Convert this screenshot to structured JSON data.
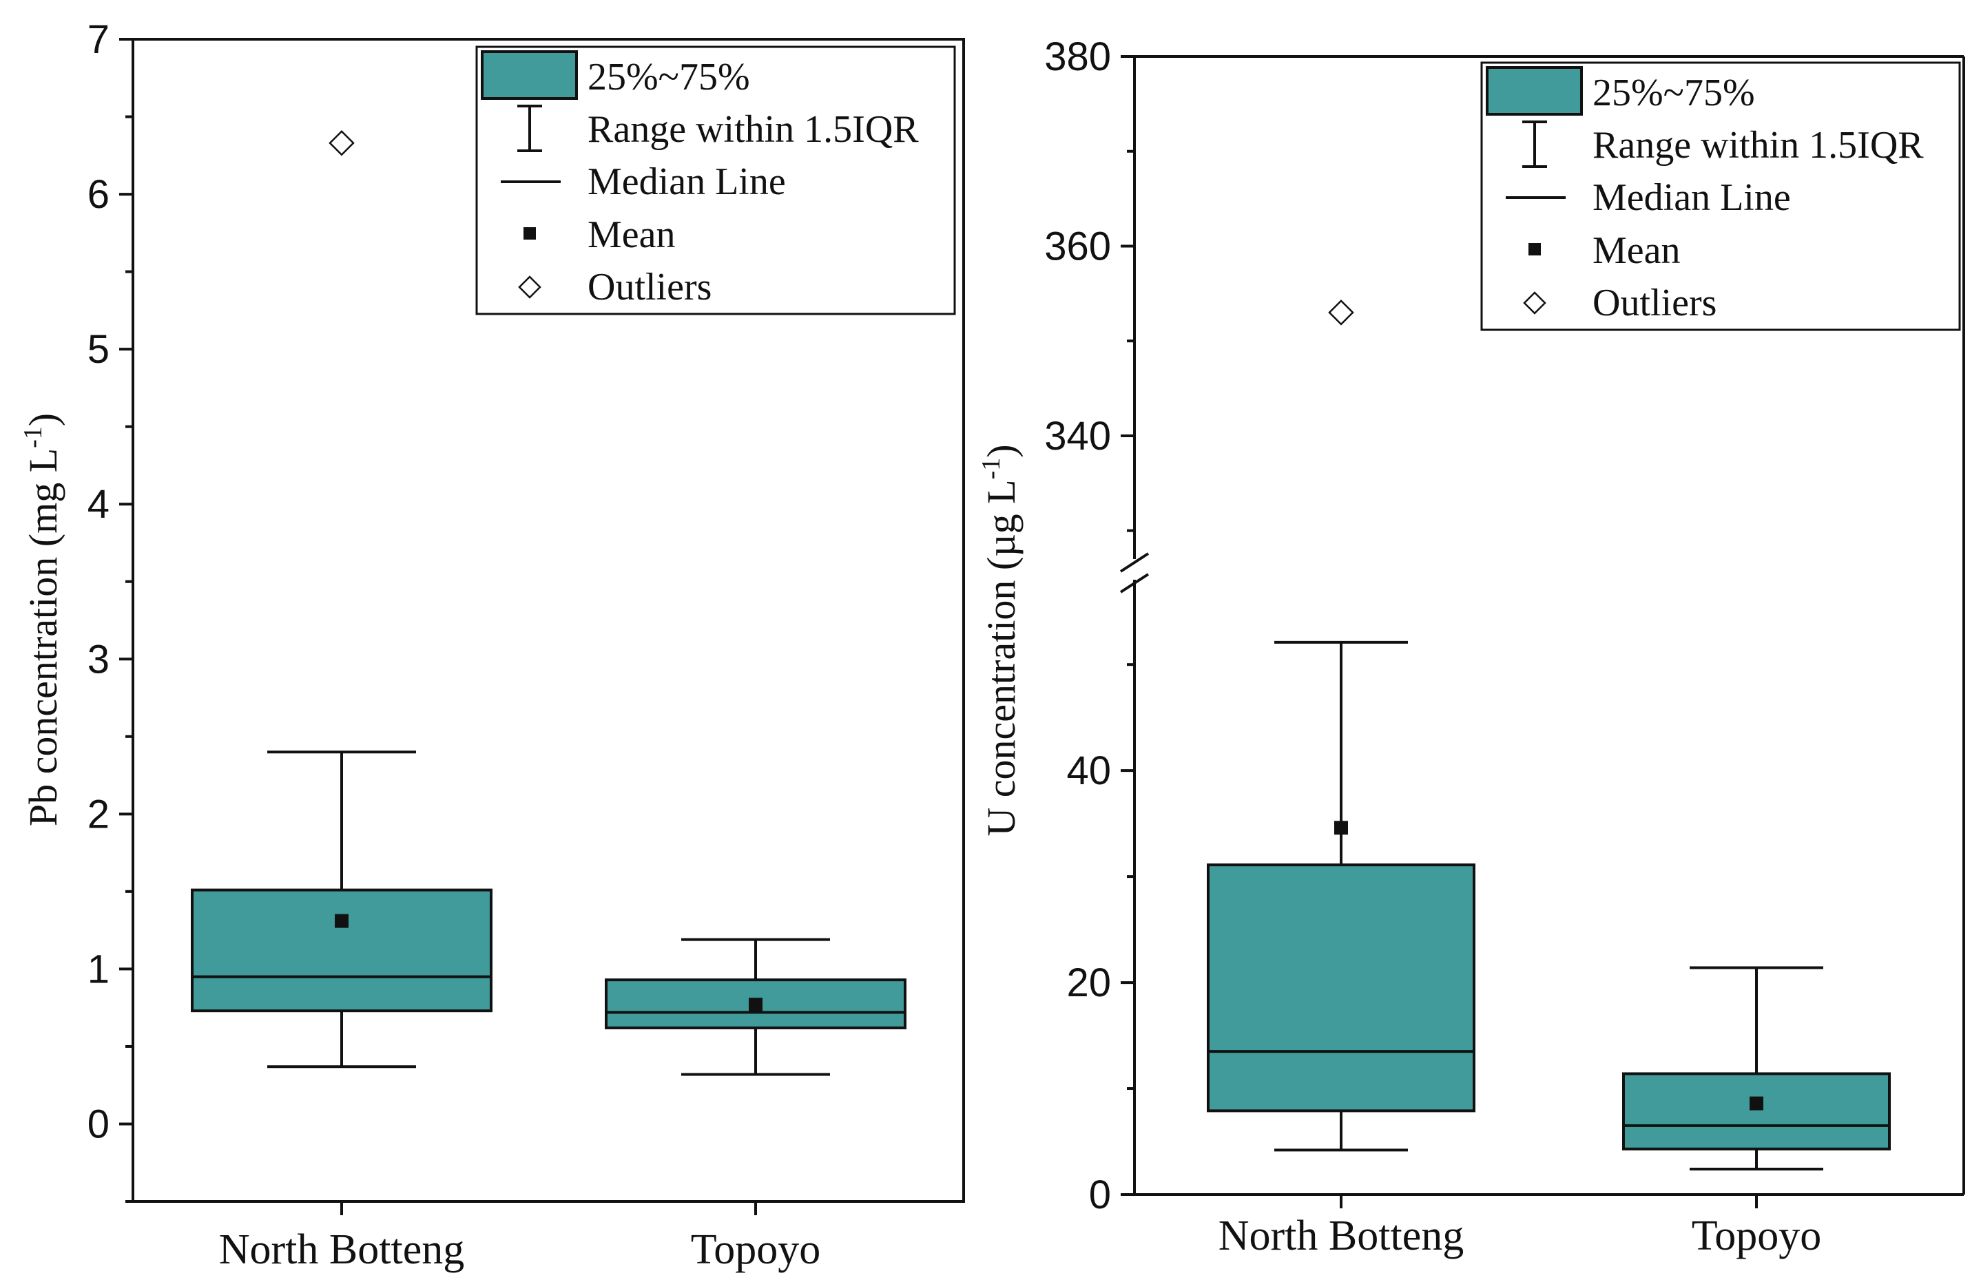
{
  "chart_data": [
    {
      "type": "box",
      "ylabel_base": "Pb concentration (mg L",
      "ylabel_sup": "-1",
      "ylabel_end": ")",
      "ylim": [
        -0.5,
        7
      ],
      "yticks": [
        0,
        1,
        2,
        3,
        4,
        5,
        6,
        7
      ],
      "ytick_labels": [
        "0",
        "1",
        "2",
        "3",
        "4",
        "5",
        "6",
        "7"
      ],
      "categories": [
        "North Botteng",
        "Topoyo"
      ],
      "boxes": [
        {
          "category": "North Botteng",
          "whisker_low": 0.37,
          "q1": 0.73,
          "median": 0.95,
          "q3": 1.51,
          "whisker_high": 2.4,
          "mean": 1.31,
          "outliers": [
            6.33
          ]
        },
        {
          "category": "Topoyo",
          "whisker_low": 0.32,
          "q1": 0.62,
          "median": 0.72,
          "q3": 0.93,
          "whisker_high": 1.19,
          "mean": 0.77,
          "outliers": []
        }
      ],
      "legend_position": "top-right",
      "axis_break": false
    },
    {
      "type": "box",
      "ylabel_base": "U concentration (µg L",
      "ylabel_sup": "-1",
      "ylabel_end": ")",
      "ylim_lower": [
        0,
        58
      ],
      "ylim_upper": [
        327,
        380
      ],
      "yticks": [
        0,
        20,
        40,
        340,
        360,
        380
      ],
      "ytick_labels": [
        "0",
        "20",
        "40",
        "340",
        "360",
        "380"
      ],
      "categories": [
        "North Botteng",
        "Topoyo"
      ],
      "boxes": [
        {
          "category": "North Botteng",
          "whisker_low": 4.2,
          "q1": 7.9,
          "median": 13.5,
          "q3": 31.1,
          "whisker_high": 52.1,
          "mean": 34.6,
          "outliers": [
            353
          ]
        },
        {
          "category": "Topoyo",
          "whisker_low": 2.4,
          "q1": 4.3,
          "median": 6.5,
          "q3": 11.4,
          "whisker_high": 21.4,
          "mean": 8.6,
          "outliers": []
        }
      ],
      "legend_position": "top-right",
      "axis_break": true
    }
  ],
  "legend": {
    "box": "25%~75%",
    "range": "Range within 1.5IQR",
    "median": "Median Line",
    "mean": "Mean",
    "outliers": "Outliers"
  },
  "colors": {
    "box_fill": "#419b9b",
    "line": "#111111"
  }
}
